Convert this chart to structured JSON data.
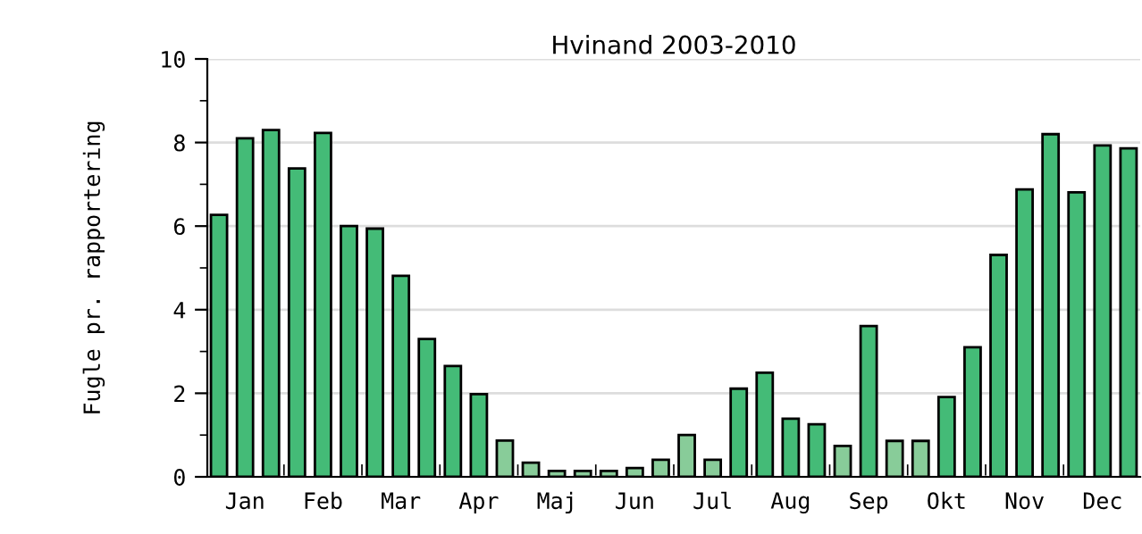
{
  "chart_data": {
    "type": "bar",
    "title": "Hvinand 2003-2010",
    "ylabel": "Fugle pr. rapportering",
    "categories": [
      null,
      "Jan",
      null,
      null,
      "Feb",
      null,
      null,
      "Mar",
      null,
      null,
      "Apr",
      null,
      null,
      "Maj",
      null,
      null,
      "Jun",
      null,
      null,
      "Jul",
      null,
      null,
      "Aug",
      null,
      null,
      "Sep",
      null,
      null,
      "Okt",
      null,
      null,
      "Nov",
      null,
      null,
      "Dec",
      null
    ],
    "values": [
      6.27,
      8.1,
      8.3,
      7.38,
      8.23,
      6.0,
      5.94,
      4.81,
      3.3,
      2.65,
      1.98,
      0.87,
      0.34,
      0.14,
      0.14,
      0.14,
      0.21,
      0.41,
      1.0,
      0.41,
      2.11,
      2.49,
      1.39,
      1.26,
      0.74,
      3.61,
      0.86,
      0.86,
      1.91,
      3.1,
      5.31,
      6.88,
      8.2,
      6.81,
      7.93,
      7.86
    ],
    "colors": [
      "#44bb77",
      "#44bb77",
      "#44bb77",
      "#44bb77",
      "#44bb77",
      "#44bb77",
      "#44bb77",
      "#44bb77",
      "#44bb77",
      "#44bb77",
      "#44bb77",
      "#88cc99",
      "#88cc99",
      "#88cc99",
      "#88cc99",
      "#88cc99",
      "#88cc99",
      "#88cc99",
      "#88cc99",
      "#88cc99",
      "#44bb77",
      "#44bb77",
      "#44bb77",
      "#44bb77",
      "#88cc99",
      "#44bb77",
      "#88cc99",
      "#88cc99",
      "#44bb77",
      "#44bb77",
      "#44bb77",
      "#44bb77",
      "#44bb77",
      "#44bb77",
      "#44bb77",
      "#44bb77"
    ],
    "ylim": [
      0,
      10
    ],
    "yticks": [
      0,
      {
        "value": 1,
        "label": null
      },
      2,
      {
        "value": 3,
        "label": null
      },
      4,
      {
        "value": 5,
        "label": null
      },
      6,
      {
        "value": 7,
        "label": null
      },
      8,
      {
        "value": 9,
        "label": null
      },
      10
    ],
    "grid": "y",
    "legend": false
  }
}
